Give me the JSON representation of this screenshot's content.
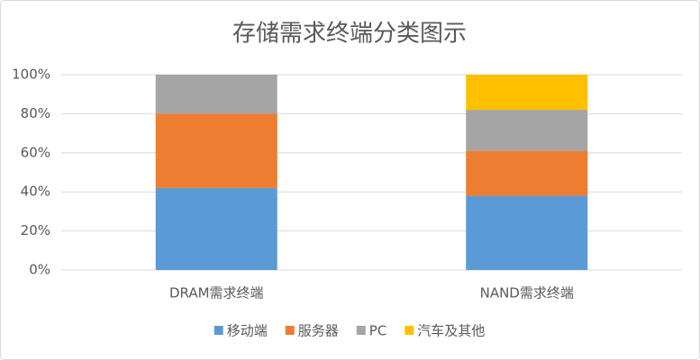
{
  "chart_data": {
    "type": "stacked_bar",
    "title": "存储需求终端分类图示",
    "categories": [
      "DRAM需求终端",
      "NAND需求终端"
    ],
    "series": [
      {
        "name": "移动端",
        "color": "#5b9bd5",
        "values": [
          42,
          38
        ]
      },
      {
        "name": "服务器",
        "color": "#ed7d31",
        "values": [
          38,
          23
        ]
      },
      {
        "name": "PC",
        "color": "#a5a5a5",
        "values": [
          20,
          21
        ]
      },
      {
        "name": "汽车及其他",
        "color": "#ffc000",
        "values": [
          0,
          18
        ]
      }
    ],
    "ylim": [
      0,
      100
    ],
    "yticks": [
      {
        "value": 0,
        "label": "0%"
      },
      {
        "value": 20,
        "label": "20%"
      },
      {
        "value": 40,
        "label": "40%"
      },
      {
        "value": 60,
        "label": "60%"
      },
      {
        "value": 80,
        "label": "80%"
      },
      {
        "value": 100,
        "label": "100%"
      }
    ],
    "grid": true
  }
}
